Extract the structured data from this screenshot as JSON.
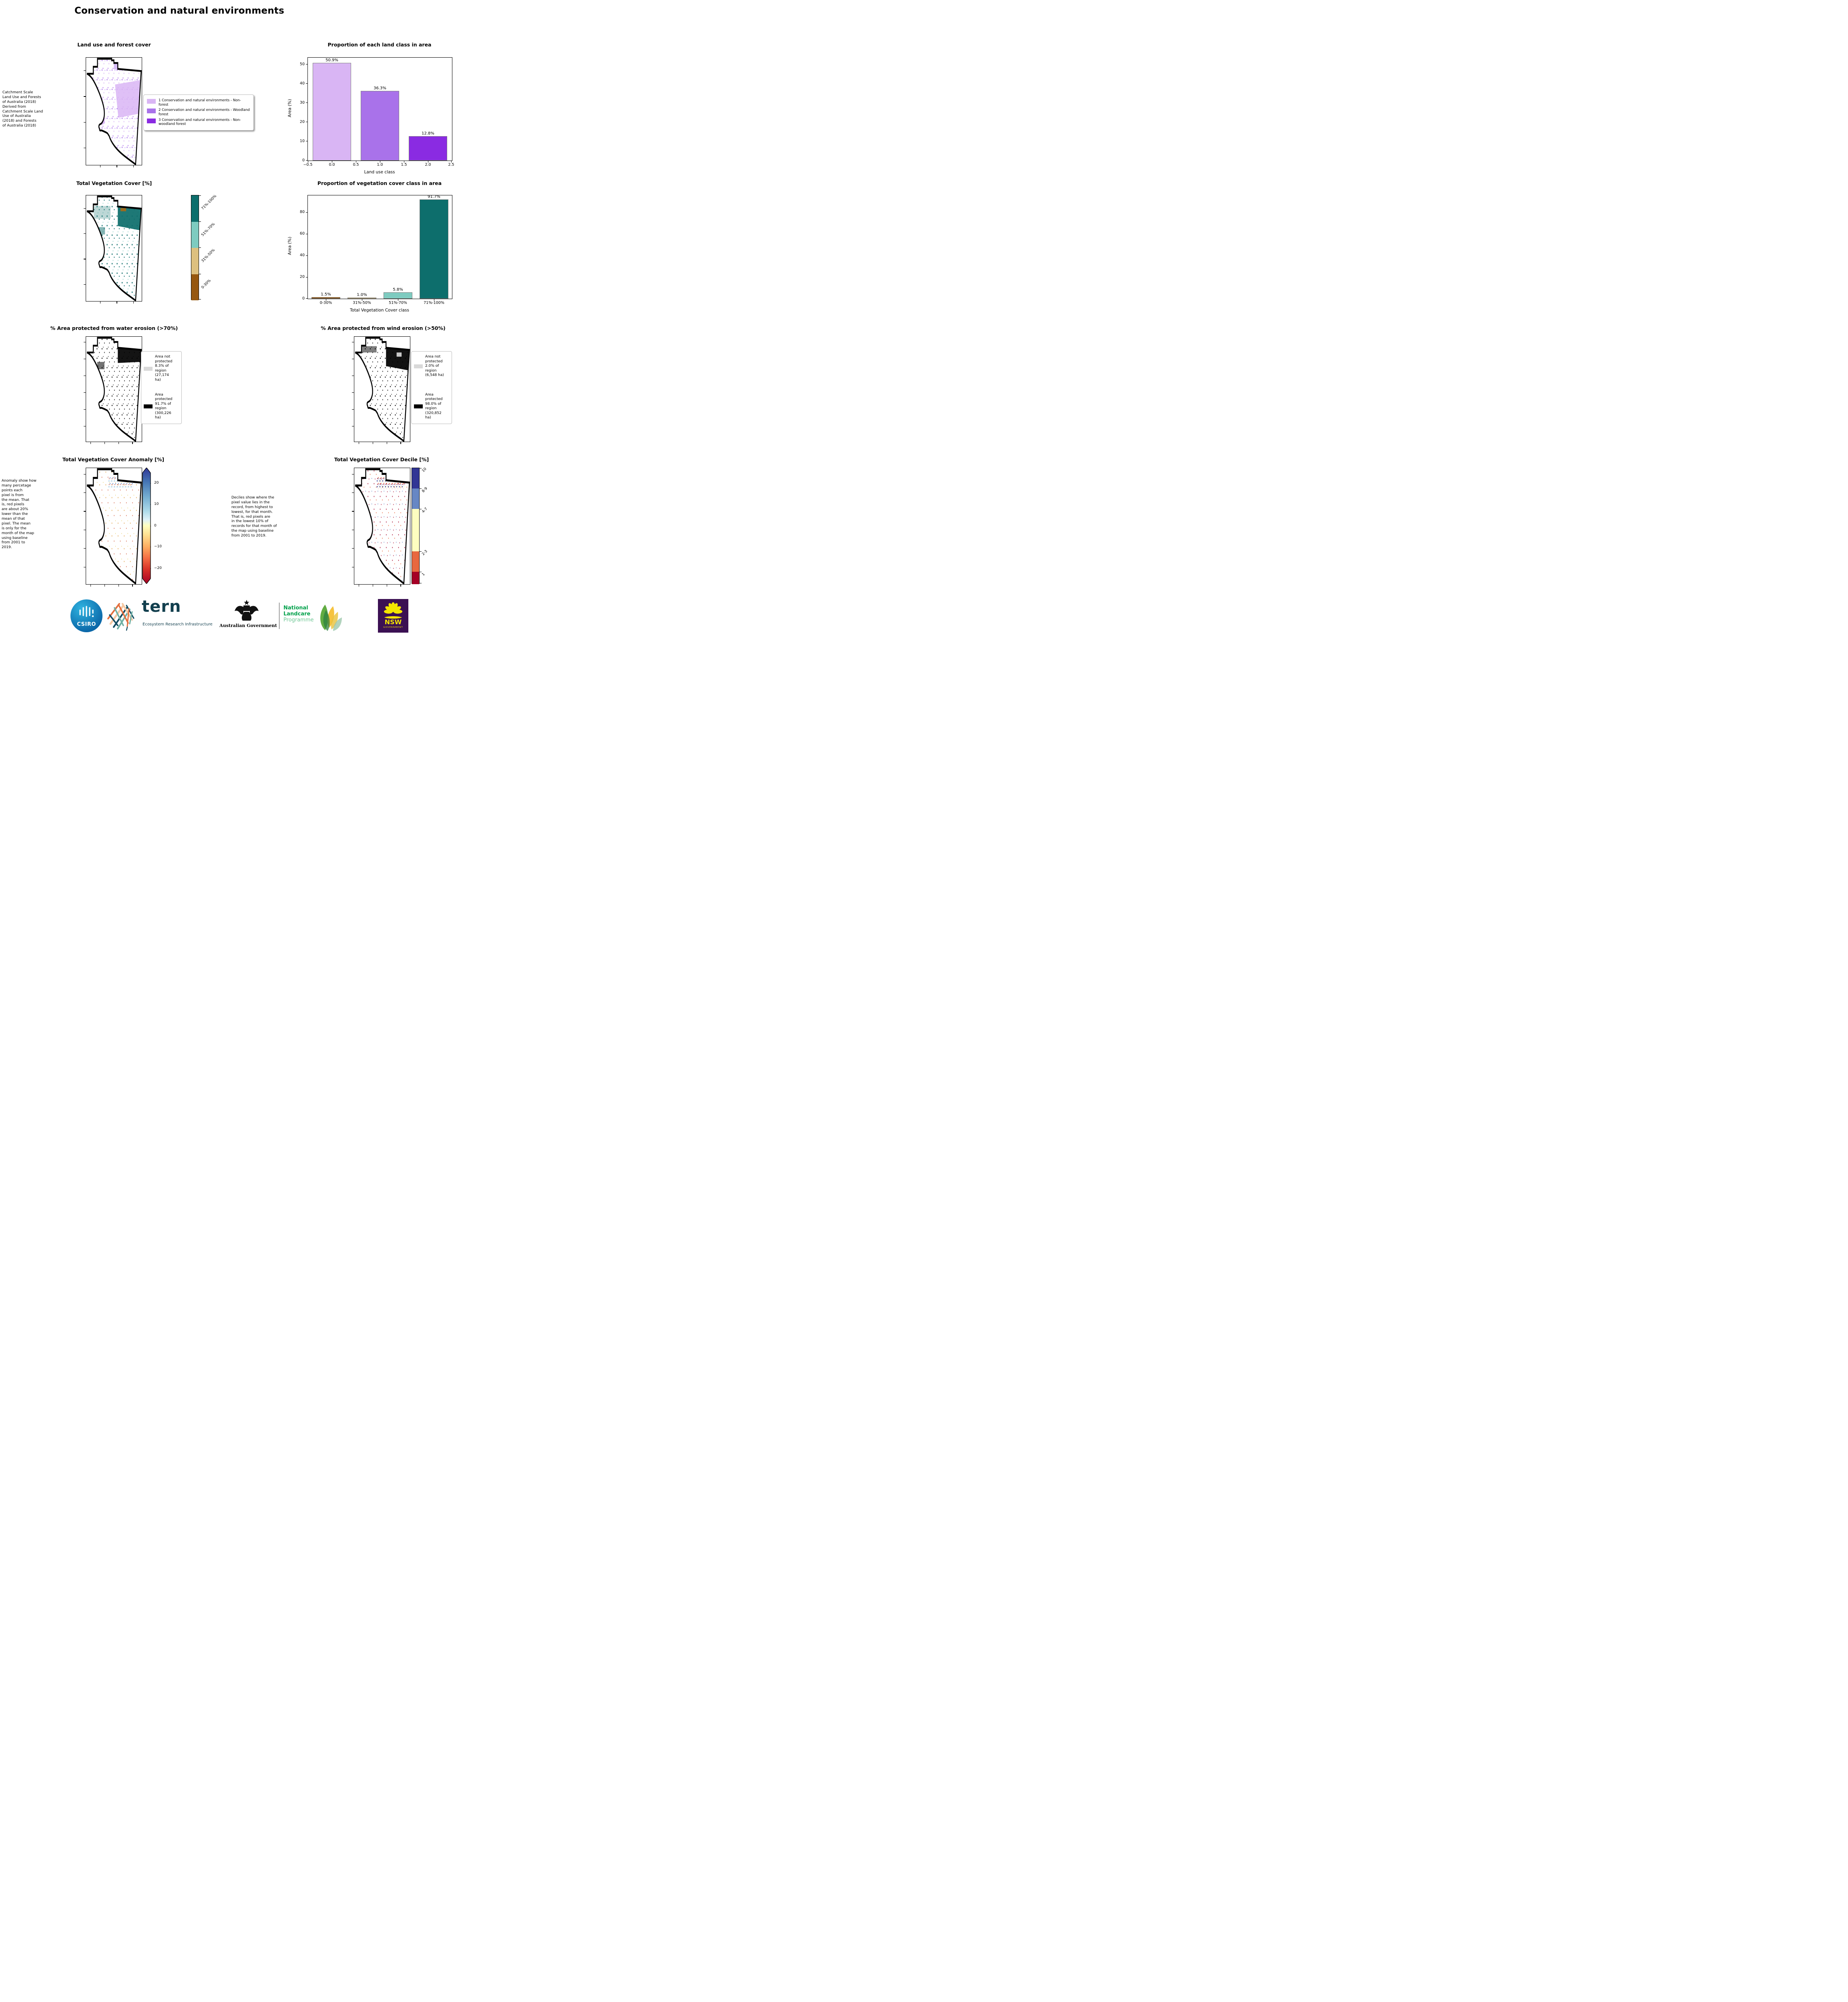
{
  "title": "Conservation and natural environments",
  "land_use": {
    "title": "Land use and forest cover",
    "note": " Catchment Scale\nLand Use and Forests\nof Australia (2018)\nDerived from\nCatchment Scale Land\nUse of Australia\n(2018) and Forests\nof Australia (2018)",
    "legend": [
      {
        "label": "1 Conservation and natural environments - Non-forest",
        "color": "#d9b5f4"
      },
      {
        "label": "2 Conservation and natural environments - Woodland forest",
        "color": "#a972ea"
      },
      {
        "label": "3 Conservation and natural environments - Non-woodland forest",
        "color": "#8a2be2"
      }
    ]
  },
  "chart_data": [
    {
      "type": "bar",
      "title": "Proportion of each land class in area",
      "xlabel": "Land use class",
      "ylabel": "Area (%)",
      "x": [
        0,
        1,
        2
      ],
      "values": [
        50.9,
        36.3,
        12.8
      ],
      "labels": [
        "50.9%",
        "36.3%",
        "12.8%"
      ],
      "colors": [
        "#d9b5f4",
        "#a972ea",
        "#8a2be2"
      ],
      "xticks": [
        "−0.5",
        "0.0",
        "0.5",
        "1.0",
        "1.5",
        "2.0",
        "2.5"
      ],
      "yticks": [
        "0",
        "10",
        "20",
        "30",
        "40",
        "50"
      ],
      "xlim": [
        -0.5,
        2.5
      ],
      "ylim": [
        0,
        53.5
      ],
      "grid": false,
      "legend_position": "none"
    },
    {
      "type": "bar",
      "title": "Proportion of vegetation cover class in area",
      "xlabel": "Total Vegetation Cover class",
      "ylabel": "Area (%)",
      "categories": [
        "0-30%",
        "31%-50%",
        "51%-70%",
        "71%-100%"
      ],
      "values": [
        1.5,
        1.0,
        5.8,
        91.7
      ],
      "labels": [
        "1.5%",
        "1.0%",
        "5.8%",
        "91.7%"
      ],
      "colors": [
        "#965710",
        "#ddc07f",
        "#7ecbc0",
        "#0d6e6c"
      ],
      "yticks": [
        "0",
        "20",
        "40",
        "60",
        "80"
      ],
      "ylim": [
        0,
        95.5
      ],
      "grid": false,
      "legend_position": "none"
    }
  ],
  "veg_cover": {
    "title": "Total Vegetation Cover [%]",
    "classes": [
      "71%-100%",
      "51%-70%",
      "31%-50%",
      "0-30%"
    ],
    "colors": [
      "#0d6e6c",
      "#7ecbc0",
      "#ddc07f",
      "#965710"
    ]
  },
  "water": {
    "title": "% Area protected from water erosion (>70%)",
    "legend": [
      {
        "label": "Area not\nprotected\n8.3% of\nregion\n(27,174\nha)",
        "color": "#d9d9d9"
      },
      {
        "label": "Area\nprotected\n91.7% of\nregion\n(300,226\nha)",
        "color": "#000000"
      }
    ]
  },
  "wind": {
    "title": "% Area protected from wind erosion (>50%)",
    "legend": [
      {
        "label": "Area not\nprotected\n2.0% of\nregion\n(6,548 ha)",
        "color": "#d9d9d9"
      },
      {
        "label": "Area\nprotected\n98.0% of\nregion\n(320,852\nha)",
        "color": "#000000"
      }
    ]
  },
  "anomaly": {
    "title": "Total Vegetation Cover Anomaly [%]",
    "note": "Anomaly show how\nmany percetage\npoints each\npixel is from\nthe mean. That\nis, red pixels\nare about 20%\nlower than the\nmean of that\npixel. The mean\nis only for the\nmonth of the map\nusing baseline\nfrom 2001 to\n2019.",
    "cbar_ticks": [
      "20",
      "10",
      "0",
      "−10",
      "−20"
    ],
    "cbar_top_color": "#313695",
    "cbar_mid_color": "#ffffbf",
    "cbar_bottom_color": "#a50026"
  },
  "decile": {
    "title": "Total Vegetation Cover Decile [%]",
    "note": "Deciles show where the\npixel value lies in the\nrecord, from highest to\nlowest, for that month.\nThat is, red pixels are\nin the lowest 10% of\nrecords for that month of\nthe map using baseline\nfrom 2001 to 2019.",
    "classes": [
      "10",
      "8-9",
      "4-7",
      "2-3",
      "1"
    ],
    "colors": [
      "#313695",
      "#6787c4",
      "#fdfdc0",
      "#e8683f",
      "#a50026"
    ]
  },
  "footer": {
    "csiro": "CSIRO",
    "tern": "tern",
    "tern_sub": "Ecosystem Research Infrastructure",
    "gov": "Australian Government",
    "nlp_line1": "National",
    "nlp_line2": "Landcare",
    "nlp_line3": "Programme",
    "nsw": "NSW",
    "nsw_sub": "GOVERNMENT"
  }
}
